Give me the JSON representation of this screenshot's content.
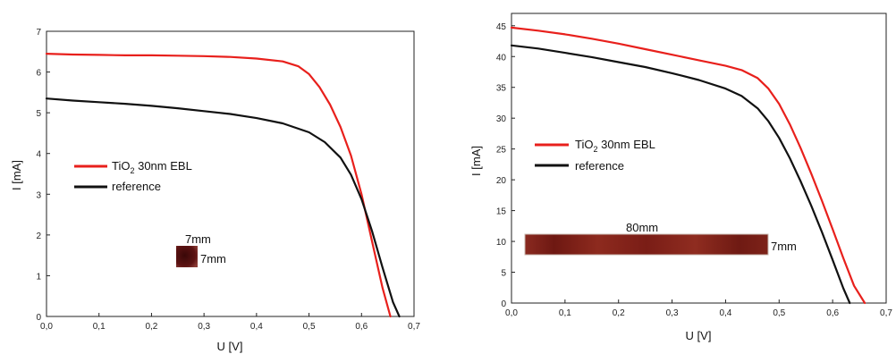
{
  "chart_data": [
    {
      "type": "line",
      "xlabel": "U [V]",
      "ylabel": "I [mA]",
      "xlim": [
        0.0,
        0.7
      ],
      "ylim": [
        0,
        7
      ],
      "xticks": [
        "0,0",
        "0,1",
        "0,2",
        "0,3",
        "0,4",
        "0,5",
        "0,6",
        "0,7"
      ],
      "yticks": [
        "0",
        "1",
        "2",
        "3",
        "4",
        "5",
        "6",
        "7"
      ],
      "grid": false,
      "legend_position": "left-middle",
      "series": [
        {
          "name": "TiO2 30nm EBL",
          "color": "#e8201c",
          "x": [
            0.0,
            0.05,
            0.1,
            0.15,
            0.2,
            0.25,
            0.3,
            0.35,
            0.4,
            0.45,
            0.48,
            0.5,
            0.52,
            0.54,
            0.56,
            0.58,
            0.6,
            0.62,
            0.64,
            0.655
          ],
          "y": [
            6.45,
            6.43,
            6.42,
            6.41,
            6.41,
            6.4,
            6.39,
            6.37,
            6.33,
            6.26,
            6.14,
            5.95,
            5.63,
            5.2,
            4.65,
            3.95,
            3.0,
            1.85,
            0.7,
            0.0
          ]
        },
        {
          "name": "reference",
          "color": "#111111",
          "x": [
            0.0,
            0.05,
            0.1,
            0.15,
            0.2,
            0.25,
            0.3,
            0.35,
            0.4,
            0.45,
            0.5,
            0.53,
            0.56,
            0.58,
            0.6,
            0.62,
            0.64,
            0.66,
            0.672
          ],
          "y": [
            5.35,
            5.3,
            5.26,
            5.22,
            5.17,
            5.11,
            5.04,
            4.97,
            4.87,
            4.74,
            4.52,
            4.28,
            3.9,
            3.48,
            2.88,
            2.1,
            1.2,
            0.35,
            0.0
          ]
        }
      ],
      "annotation": {
        "width_label": "7mm",
        "height_label": "7mm",
        "sample_color": "#5a1010"
      }
    },
    {
      "type": "line",
      "xlabel": "U [V]",
      "ylabel": "I [mA]",
      "xlim": [
        0.0,
        0.7
      ],
      "ylim": [
        0,
        47
      ],
      "xticks": [
        "0,0",
        "0,1",
        "0,2",
        "0,3",
        "0,4",
        "0,5",
        "0,6",
        "0,7"
      ],
      "yticks": [
        "0",
        "5",
        "10",
        "15",
        "20",
        "25",
        "30",
        "35",
        "40",
        "45"
      ],
      "grid": false,
      "legend_position": "left-middle",
      "series": [
        {
          "name": "TiO2 30nm EBL",
          "color": "#e8201c",
          "x": [
            0.0,
            0.05,
            0.1,
            0.15,
            0.2,
            0.25,
            0.3,
            0.35,
            0.4,
            0.43,
            0.46,
            0.48,
            0.5,
            0.52,
            0.54,
            0.56,
            0.58,
            0.6,
            0.62,
            0.64,
            0.66
          ],
          "y": [
            44.7,
            44.2,
            43.6,
            42.9,
            42.1,
            41.2,
            40.3,
            39.4,
            38.5,
            37.8,
            36.5,
            34.8,
            32.3,
            29.0,
            25.2,
            21.0,
            16.6,
            12.0,
            7.3,
            2.8,
            0.0
          ]
        },
        {
          "name": "reference",
          "color": "#111111",
          "x": [
            0.0,
            0.05,
            0.1,
            0.15,
            0.2,
            0.25,
            0.3,
            0.35,
            0.4,
            0.43,
            0.46,
            0.48,
            0.5,
            0.52,
            0.54,
            0.56,
            0.58,
            0.6,
            0.62,
            0.632
          ],
          "y": [
            41.8,
            41.3,
            40.6,
            39.9,
            39.1,
            38.3,
            37.3,
            36.2,
            34.8,
            33.6,
            31.6,
            29.5,
            26.8,
            23.5,
            19.8,
            15.8,
            11.5,
            7.0,
            2.4,
            0.0
          ]
        }
      ],
      "annotation": {
        "width_label": "80mm",
        "height_label": "7mm",
        "sample_color": "#7a1e17"
      }
    }
  ],
  "legend": {
    "series1_label_main": "TiO",
    "series1_label_sub": "2",
    "series1_label_rest": " 30nm EBL",
    "series2_label": "reference"
  }
}
